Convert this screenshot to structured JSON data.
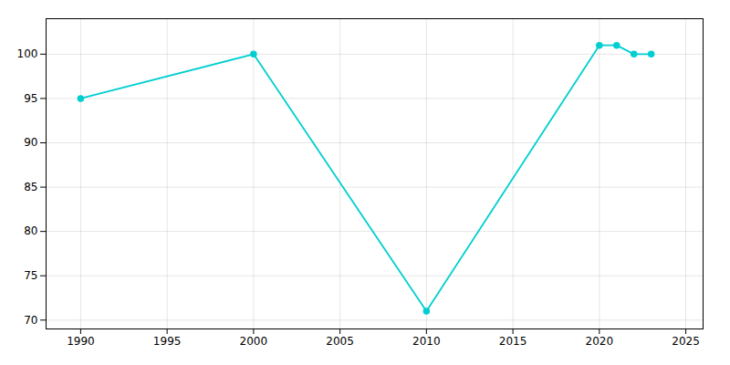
{
  "chart_data": {
    "type": "line",
    "x": [
      1990,
      2000,
      2010,
      2020,
      2021,
      2022,
      2023
    ],
    "values": [
      95,
      100,
      71,
      101,
      101,
      100,
      100
    ],
    "color": "#00CED1",
    "marker": "circle",
    "xlim": [
      1988,
      2026
    ],
    "ylim": [
      69,
      104
    ],
    "xticks": [
      1990,
      1995,
      2000,
      2005,
      2010,
      2015,
      2020,
      2025
    ],
    "yticks": [
      70,
      75,
      80,
      85,
      90,
      95,
      100
    ],
    "grid": true
  }
}
